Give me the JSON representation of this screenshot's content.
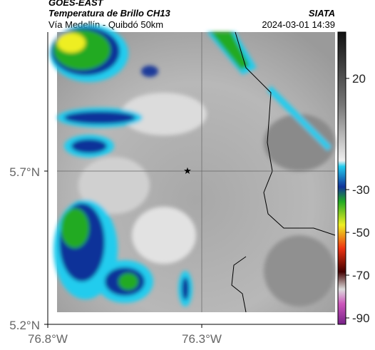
{
  "header": {
    "title": "GOES-EAST",
    "subtitle": "Temperatura de Brillo CH13",
    "route": "Vía Medellín - Quibdó 50km",
    "source": "SIATA",
    "datetime": "2024-03-01 14:39"
  },
  "axes": {
    "lat_labels": [
      "5.7°N",
      "5.2°N"
    ],
    "lon_labels": [
      "76.8°W",
      "76.3°W"
    ]
  },
  "colorbar": {
    "ticks": [
      "20",
      "-30",
      "-50",
      "-70",
      "-90"
    ]
  }
}
